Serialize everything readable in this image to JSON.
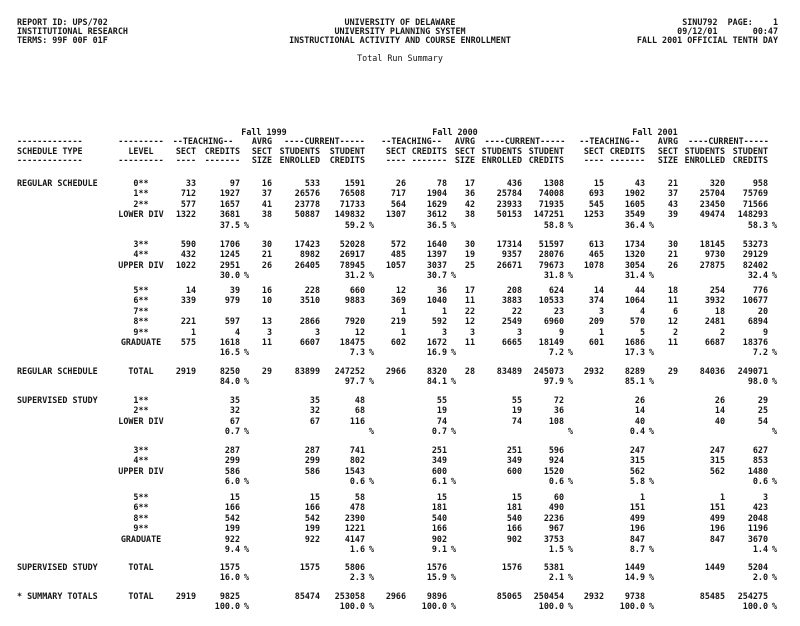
{
  "header": {
    "left": [
      "REPORT ID: UPS/702",
      "INSTITUTIONAL RESEARCH",
      "TERMS: 99F 00F 01F"
    ],
    "center": [
      "UNIVERSITY OF DELAWARE",
      "UNIVERSITY PLANNING SYSTEM",
      "INSTRUCTIONAL ACTIVITY AND COURSE ENROLLMENT"
    ],
    "right": [
      "SINU792  PAGE:    1",
      "09/12/01       00:47",
      "FALL 2001 OFFICIAL TENTH DAY"
    ],
    "subtitle": "Total Run Summary"
  },
  "columns": {
    "terms": [
      "Fall 1999",
      "Fall 2000",
      "Fall 2001"
    ],
    "schedule_type": [
      "-------------",
      "SCHEDULE TYPE",
      "-------------"
    ],
    "level": [
      "---------",
      "LEVEL",
      "---------"
    ],
    "group1": [
      "--TEACHING--",
      "AVRG",
      "----CURRENT-----"
    ],
    "line2": [
      "SECT",
      "CREDITS",
      "SECT",
      "STUDENTS",
      "STUDENT"
    ],
    "line3": [
      "----",
      "-------",
      "SIZE",
      "ENROLLED",
      "CREDITS"
    ]
  },
  "sections": [
    {
      "label": "REGULAR SCHEDULE",
      "groups": [
        {
          "rows": [
            {
              "level": "0**",
              "v": [
                "33",
                "97",
                "16",
                "533",
                "1591",
                "26",
                "78",
                "17",
                "436",
                "1308",
                "15",
                "43",
                "21",
                "320",
                "958"
              ]
            },
            {
              "level": "1**",
              "v": [
                "712",
                "1927",
                "37",
                "26576",
                "76508",
                "717",
                "1904",
                "36",
                "25784",
                "74008",
                "693",
                "1902",
                "37",
                "25704",
                "75769"
              ]
            },
            {
              "level": "2**",
              "v": [
                "577",
                "1657",
                "41",
                "23778",
                "71733",
                "564",
                "1629",
                "42",
                "23933",
                "71935",
                "545",
                "1605",
                "43",
                "23450",
                "71566"
              ]
            },
            {
              "level": "LOWER DIV",
              "v": [
                "1322",
                "3681",
                "38",
                "50887",
                "149832",
                "1307",
                "3612",
                "38",
                "50153",
                "147251",
                "1253",
                "3549",
                "39",
                "49474",
                "148293"
              ]
            }
          ],
          "pct": [
            "37.5",
            "59.2",
            "36.5",
            "58.8",
            "36.4",
            "58.3"
          ]
        },
        {
          "rows": [
            {
              "level": "3**",
              "v": [
                "590",
                "1706",
                "30",
                "17423",
                "52028",
                "572",
                "1640",
                "30",
                "17314",
                "51597",
                "613",
                "1734",
                "30",
                "18145",
                "53273"
              ]
            },
            {
              "level": "4**",
              "v": [
                "432",
                "1245",
                "21",
                "8982",
                "26917",
                "485",
                "1397",
                "19",
                "9357",
                "28076",
                "465",
                "1320",
                "21",
                "9730",
                "29129"
              ]
            },
            {
              "level": "UPPER DIV",
              "v": [
                "1022",
                "2951",
                "26",
                "26405",
                "78945",
                "1057",
                "3037",
                "25",
                "26671",
                "79673",
                "1078",
                "3054",
                "26",
                "27875",
                "82402"
              ]
            }
          ],
          "pct": [
            "30.0",
            "31.2",
            "30.7",
            "31.8",
            "31.4",
            "32.4"
          ]
        },
        {
          "rows": [
            {
              "level": "5**",
              "v": [
                "14",
                "39",
                "16",
                "228",
                "660",
                "12",
                "36",
                "17",
                "208",
                "624",
                "14",
                "44",
                "18",
                "254",
                "776"
              ]
            },
            {
              "level": "6**",
              "v": [
                "339",
                "979",
                "10",
                "3510",
                "9883",
                "369",
                "1040",
                "11",
                "3883",
                "10533",
                "374",
                "1064",
                "11",
                "3932",
                "10677"
              ]
            },
            {
              "level": "7**",
              "v": [
                "",
                "",
                "",
                "",
                "",
                "1",
                "1",
                "22",
                "22",
                "23",
                "3",
                "4",
                "6",
                "18",
                "20"
              ]
            },
            {
              "level": "8**",
              "v": [
                "221",
                "597",
                "13",
                "2866",
                "7920",
                "219",
                "592",
                "12",
                "2549",
                "6960",
                "209",
                "570",
                "12",
                "2481",
                "6894"
              ]
            },
            {
              "level": "9**",
              "v": [
                "1",
                "4",
                "3",
                "3",
                "12",
                "1",
                "3",
                "3",
                "3",
                "9",
                "1",
                "5",
                "2",
                "2",
                "9"
              ]
            },
            {
              "level": "GRADUATE",
              "v": [
                "575",
                "1618",
                "11",
                "6607",
                "18475",
                "602",
                "1672",
                "11",
                "6665",
                "18149",
                "601",
                "1686",
                "11",
                "6687",
                "18376"
              ]
            }
          ],
          "pct": [
            "16.5",
            "7.3",
            "16.9",
            "7.2",
            "17.3",
            "7.2"
          ]
        }
      ],
      "total": {
        "label": "REGULAR SCHEDULE",
        "level": "TOTAL",
        "v": [
          "2919",
          "8250",
          "29",
          "83899",
          "247252",
          "2966",
          "8320",
          "28",
          "83489",
          "245073",
          "2932",
          "8289",
          "29",
          "84036",
          "249071"
        ],
        "pct": [
          "84.0",
          "97.7",
          "84.1",
          "97.9",
          "85.1",
          "98.0"
        ]
      }
    },
    {
      "label": "SUPERVISED STUDY",
      "groups": [
        {
          "rows": [
            {
              "level": "1**",
              "v": [
                "",
                "35",
                "",
                "35",
                "48",
                "",
                "55",
                "",
                "55",
                "72",
                "",
                "26",
                "",
                "26",
                "29"
              ]
            },
            {
              "level": "2**",
              "v": [
                "",
                "32",
                "",
                "32",
                "68",
                "",
                "19",
                "",
                "19",
                "36",
                "",
                "14",
                "",
                "14",
                "25"
              ]
            },
            {
              "level": "LOWER DIV",
              "v": [
                "",
                "67",
                "",
                "67",
                "116",
                "",
                "74",
                "",
                "74",
                "108",
                "",
                "40",
                "",
                "40",
                "54"
              ]
            }
          ],
          "pct": [
            "0.7",
            "",
            "0.7",
            "",
            "0.4",
            ""
          ]
        },
        {
          "rows": [
            {
              "level": "3**",
              "v": [
                "",
                "287",
                "",
                "287",
                "741",
                "",
                "251",
                "",
                "251",
                "596",
                "",
                "247",
                "",
                "247",
                "627"
              ]
            },
            {
              "level": "4**",
              "v": [
                "",
                "299",
                "",
                "299",
                "802",
                "",
                "349",
                "",
                "349",
                "924",
                "",
                "315",
                "",
                "315",
                "853"
              ]
            },
            {
              "level": "UPPER DIV",
              "v": [
                "",
                "586",
                "",
                "586",
                "1543",
                "",
                "600",
                "",
                "600",
                "1520",
                "",
                "562",
                "",
                "562",
                "1480"
              ]
            }
          ],
          "pct": [
            "6.0",
            "0.6",
            "6.1",
            "0.6",
            "5.8",
            "0.6"
          ]
        },
        {
          "rows": [
            {
              "level": "5**",
              "v": [
                "",
                "15",
                "",
                "15",
                "58",
                "",
                "15",
                "",
                "15",
                "60",
                "",
                "1",
                "",
                "1",
                "3"
              ]
            },
            {
              "level": "6**",
              "v": [
                "",
                "166",
                "",
                "166",
                "478",
                "",
                "181",
                "",
                "181",
                "490",
                "",
                "151",
                "",
                "151",
                "423"
              ]
            },
            {
              "level": "8**",
              "v": [
                "",
                "542",
                "",
                "542",
                "2390",
                "",
                "540",
                "",
                "540",
                "2236",
                "",
                "499",
                "",
                "499",
                "2048"
              ]
            },
            {
              "level": "9**",
              "v": [
                "",
                "199",
                "",
                "199",
                "1221",
                "",
                "166",
                "",
                "166",
                "967",
                "",
                "196",
                "",
                "196",
                "1196"
              ]
            },
            {
              "level": "GRADUATE",
              "v": [
                "",
                "922",
                "",
                "922",
                "4147",
                "",
                "902",
                "",
                "902",
                "3753",
                "",
                "847",
                "",
                "847",
                "3670"
              ]
            }
          ],
          "pct": [
            "9.4",
            "1.6",
            "9.1",
            "1.5",
            "8.7",
            "1.4"
          ]
        }
      ],
      "total": {
        "label": "SUPERVISED STUDY",
        "level": "TOTAL",
        "v": [
          "",
          "1575",
          "",
          "1575",
          "5806",
          "",
          "1576",
          "",
          "1576",
          "5381",
          "",
          "1449",
          "",
          "1449",
          "5204"
        ],
        "pct": [
          "16.0",
          "2.3",
          "15.9",
          "2.1",
          "14.9",
          "2.0"
        ]
      }
    }
  ],
  "summary": {
    "label": "* SUMMARY TOTALS",
    "level": "TOTAL",
    "v": [
      "2919",
      "9825",
      "",
      "85474",
      "253058",
      "2966",
      "9896",
      "",
      "85065",
      "250454",
      "2932",
      "9738",
      "",
      "85485",
      "254275"
    ],
    "pct": [
      "100.0",
      "100.0",
      "100.0",
      "100.0",
      "100.0",
      "100.0"
    ]
  }
}
